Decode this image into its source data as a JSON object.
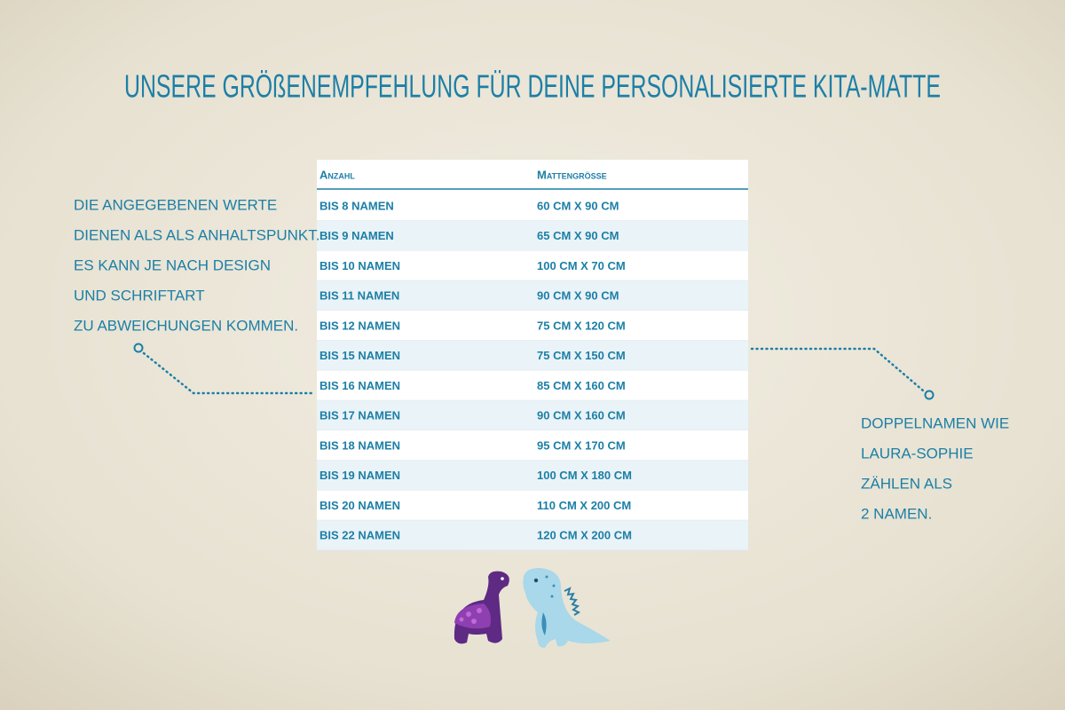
{
  "header": {
    "title": "UNSERE GRÖßENEMPFEHLUNG FÜR DEINE PERSONALISIERTE KITA-MATTE"
  },
  "left_note": [
    "DIE ANGEGEBENEN WERTE",
    "DIENEN ALS ALS ANHALTSPUNKT.",
    "ES KANN JE NACH DESIGN",
    "UND SCHRIFTART",
    "ZU ABWEICHUNGEN KOMMEN."
  ],
  "right_note": [
    "DOPPELNAMEN WIE",
    "LAURA-SOPHIE",
    "ZÄHLEN ALS",
    "2 NAMEN."
  ],
  "table": {
    "columns": [
      "Anzahl",
      "Mattengröße"
    ],
    "rows": [
      [
        "BIS 8 NAMEN",
        "60 CM X 90 CM"
      ],
      [
        "BIS 9 NAMEN",
        "65 CM X 90 CM"
      ],
      [
        "BIS 10 NAMEN",
        "100 CM X 70 CM"
      ],
      [
        "BIS 11 NAMEN",
        "90 CM X 90 CM"
      ],
      [
        "BIS 12 NAMEN",
        "75 CM X 120 CM"
      ],
      [
        "BIS 15 NAMEN",
        "75 CM X 150 CM"
      ],
      [
        "BIS 16 NAMEN",
        "85 CM X 160 CM"
      ],
      [
        "BIS 17 NAMEN",
        "90 CM X 160 CM"
      ],
      [
        "BIS 18 NAMEN",
        "95 CM X 170 CM"
      ],
      [
        "BIS 19 NAMEN",
        "100 CM X 180 CM"
      ],
      [
        "BIS 20 NAMEN",
        "110 CM X 200 CM"
      ],
      [
        "BIS 22 NAMEN",
        "120 CM X 200 CM"
      ]
    ]
  }
}
